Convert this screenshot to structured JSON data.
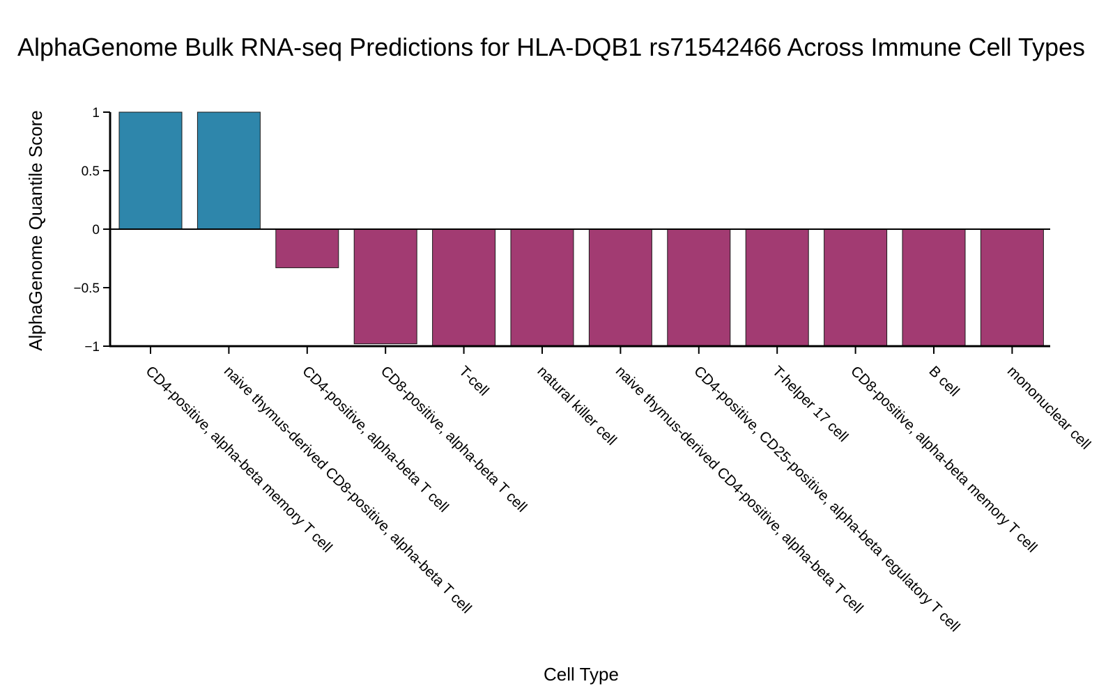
{
  "chart_data": {
    "type": "bar",
    "title": "AlphaGenome Bulk RNA-seq Predictions for HLA-DQB1 rs71542466 Across Immune Cell Types",
    "xlabel": "Cell Type",
    "ylabel": "AlphaGenome Quantile Score",
    "ylim": [
      -1,
      1
    ],
    "yticks": [
      1,
      0.5,
      0,
      -0.5,
      -1
    ],
    "ytick_labels": [
      "1",
      "0.5",
      "0",
      "−0.5",
      "−1"
    ],
    "categories": [
      "CD4-positive, alpha-beta memory T cell",
      "naive thymus-derived CD8-positive, alpha-beta T cell",
      "CD4-positive, alpha-beta T cell",
      "CD8-positive, alpha-beta T cell",
      "T-cell",
      "natural killer cell",
      "naive thymus-derived CD4-positive, alpha-beta T cell",
      "CD4-positive, CD25-positive, alpha-beta regulatory T cell",
      "T-helper 17 cell",
      "CD8-positive, alpha-beta memory T cell",
      "B cell",
      "mononuclear cell"
    ],
    "values": [
      1.0,
      1.0,
      -0.33,
      -0.98,
      -0.995,
      -0.995,
      -0.995,
      -0.995,
      -0.995,
      -0.995,
      -0.995,
      -0.995
    ],
    "colors": {
      "positive": "#2e86ab",
      "negative": "#a23b72",
      "bar_edge": "#1a1a1a",
      "axis": "#000000"
    },
    "grid": false,
    "legend": "none"
  }
}
